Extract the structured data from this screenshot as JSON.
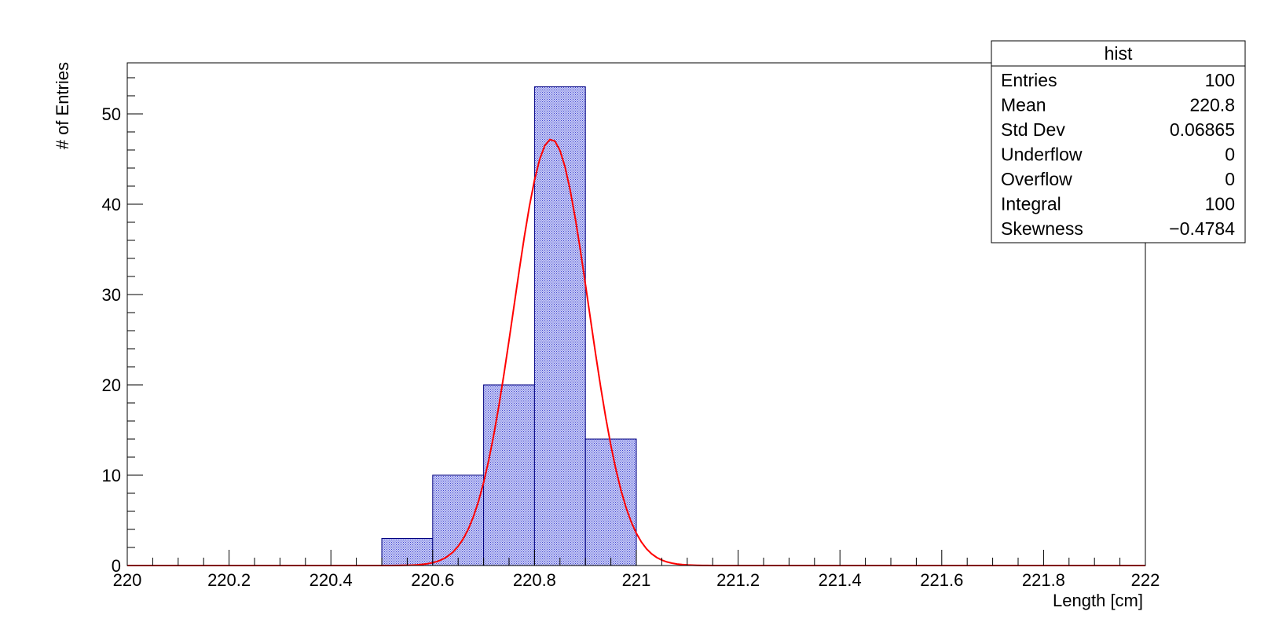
{
  "chart_data": {
    "type": "bar",
    "title": "",
    "xlabel": "Length [cm]",
    "ylabel": "# of Entries",
    "xlim": [
      220,
      222
    ],
    "ylim": [
      0,
      55.65
    ],
    "x_ticks": [
      220,
      220.2,
      220.4,
      220.6,
      220.8,
      221,
      221.2,
      221.4,
      221.6,
      221.8,
      222
    ],
    "x_tick_labels": [
      "220",
      "220.2",
      "220.4",
      "220.6",
      "220.8",
      "221",
      "221.2",
      "221.4",
      "221.6",
      "221.8",
      "222"
    ],
    "y_ticks": [
      0,
      10,
      20,
      30,
      40,
      50
    ],
    "y_tick_labels": [
      "0",
      "10",
      "20",
      "30",
      "40",
      "50"
    ],
    "grid": false,
    "bins": [
      {
        "low": 220.5,
        "high": 220.6,
        "count": 3
      },
      {
        "low": 220.6,
        "high": 220.7,
        "count": 10
      },
      {
        "low": 220.7,
        "high": 220.8,
        "count": 20
      },
      {
        "low": 220.8,
        "high": 220.9,
        "count": 53
      },
      {
        "low": 220.9,
        "high": 221.0,
        "count": 14
      }
    ],
    "fit": {
      "type": "gaussian",
      "constant": 47.2,
      "mean": 220.833,
      "sigma": 0.0735,
      "x_range": [
        220.0,
        222.0
      ]
    },
    "colors": {
      "bar_fill": "#b3b8f0",
      "bar_stroke": "#000080",
      "fit_line": "#ff0000"
    },
    "stats_box": {
      "title": "hist",
      "placement": "top-right",
      "rows": [
        {
          "label": "Entries",
          "value": "100"
        },
        {
          "label": "Mean",
          "value": "220.8"
        },
        {
          "label": "Std Dev",
          "value": "0.06865"
        },
        {
          "label": "Underflow",
          "value": "0"
        },
        {
          "label": "Overflow",
          "value": "0"
        },
        {
          "label": "Integral",
          "value": "100"
        },
        {
          "label": "Skewness",
          "value": "−0.4784"
        }
      ]
    }
  }
}
